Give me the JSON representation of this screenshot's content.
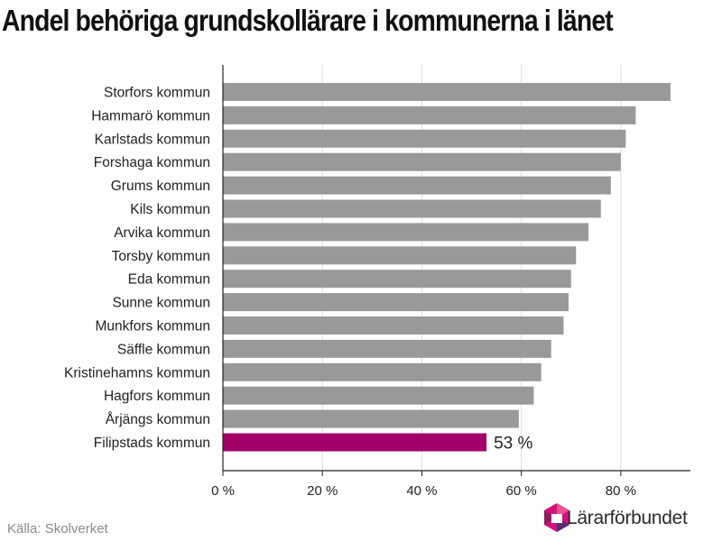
{
  "title": "Andel behöriga grundskollärare i kommunerna i länet",
  "source": "Källa: Skolverket",
  "logo": {
    "text": "Lärarförbundet"
  },
  "colors": {
    "bar": "#999999",
    "highlight": "#a10068",
    "grid": "#dddddd",
    "axis": "#222222"
  },
  "chart_data": {
    "type": "bar",
    "orientation": "horizontal",
    "categories": [
      "Storfors kommun",
      "Hammarö kommun",
      "Karlstads kommun",
      "Forshaga kommun",
      "Grums kommun",
      "Kils kommun",
      "Arvika kommun",
      "Torsby kommun",
      "Eda kommun",
      "Sunne kommun",
      "Munkfors kommun",
      "Säffle kommun",
      "Kristinehamns kommun",
      "Hagfors kommun",
      "Årjängs kommun",
      "Filipstads kommun"
    ],
    "values": [
      90,
      83,
      81,
      80,
      78,
      76,
      73.5,
      71,
      70,
      69.5,
      68.5,
      66,
      64,
      62.5,
      59.5,
      53
    ],
    "highlight_index": 15,
    "highlight_label": "53 %",
    "xlim": [
      0,
      94
    ],
    "xticks": [
      0,
      20,
      40,
      60,
      80
    ],
    "xtick_labels": [
      "0 %",
      "20 %",
      "40 %",
      "60 %",
      "80 %"
    ],
    "grid": true
  }
}
